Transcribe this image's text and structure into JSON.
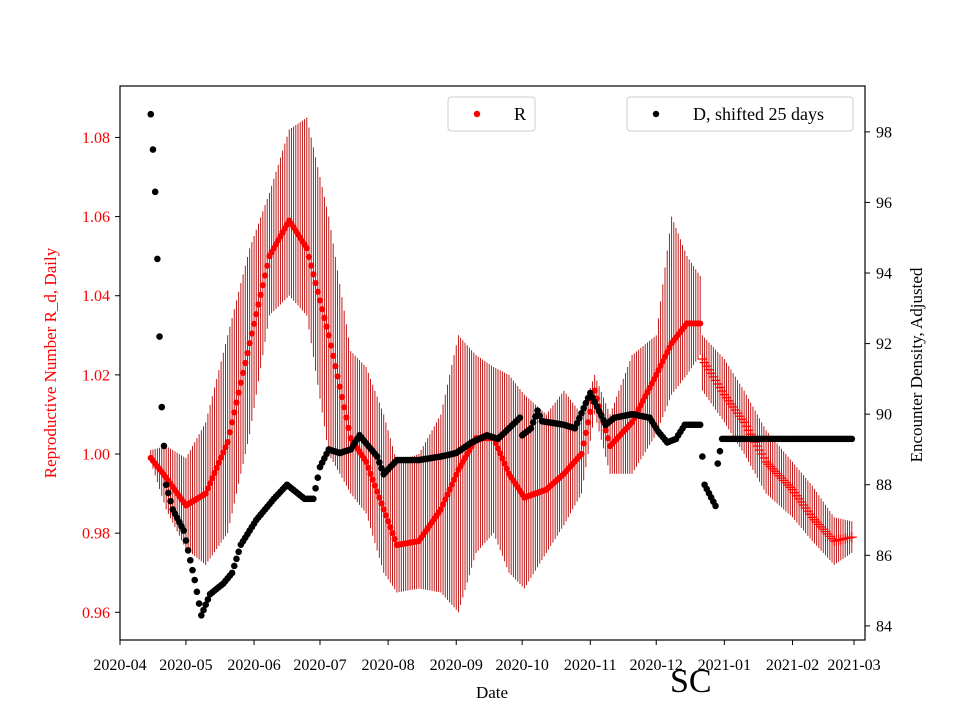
{
  "chart_data": {
    "type": "scatter",
    "state_label": "SC",
    "xlabel": "Date",
    "ylabel_left": "Reproductive Number R_d, Daily",
    "ylabel_right": "Encounter Density, Adjusted",
    "x_range": [
      "2020-04-01",
      "2021-03-06"
    ],
    "x_ticks": [
      "2020-04",
      "2020-05",
      "2020-06",
      "2020-07",
      "2020-08",
      "2020-09",
      "2020-10",
      "2020-11",
      "2020-12",
      "2021-01",
      "2021-02",
      "2021-03"
    ],
    "y_left_range": [
      0.953,
      1.093
    ],
    "y_left_ticks": [
      "0.96",
      "0.98",
      "1.00",
      "1.02",
      "1.04",
      "1.06",
      "1.08"
    ],
    "y_right_range": [
      83.6,
      99.3
    ],
    "y_right_ticks": [
      "84",
      "86",
      "88",
      "90",
      "92",
      "94",
      "96",
      "98"
    ],
    "legend": [
      "R",
      "D, shifted 25 days"
    ],
    "colors": {
      "R": "#ff0000",
      "R_errorbar": "#bb0000",
      "D": "#000000",
      "left_axis": "#ff0000"
    },
    "R_series": {
      "name": "R",
      "dot_start": "2020-04-15",
      "dot_end": "2020-12-21",
      "cross_start": "2020-12-22",
      "cross_end": "2021-02-28",
      "anchors": [
        [
          "2020-04-15",
          0.999,
          0.998,
          1.001
        ],
        [
          "2020-04-22",
          0.994,
          0.986,
          1.002
        ],
        [
          "2020-05-01",
          0.987,
          0.976,
          0.999
        ],
        [
          "2020-05-10",
          0.99,
          0.972,
          1.008
        ],
        [
          "2020-05-20",
          1.003,
          0.98,
          1.03
        ],
        [
          "2020-05-30",
          1.028,
          1.005,
          1.052
        ],
        [
          "2020-06-08",
          1.05,
          1.035,
          1.066
        ],
        [
          "2020-06-17",
          1.059,
          1.04,
          1.082
        ],
        [
          "2020-06-25",
          1.052,
          1.035,
          1.085
        ],
        [
          "2020-07-05",
          1.03,
          1.0,
          1.06
        ],
        [
          "2020-07-15",
          1.004,
          0.99,
          1.026
        ],
        [
          "2020-07-22",
          0.998,
          0.985,
          1.022
        ],
        [
          "2020-07-30",
          0.986,
          0.97,
          1.01
        ],
        [
          "2020-08-05",
          0.977,
          0.965,
          0.998
        ],
        [
          "2020-08-15",
          0.978,
          0.966,
          1.0
        ],
        [
          "2020-08-25",
          0.986,
          0.965,
          1.01
        ],
        [
          "2020-09-02",
          0.996,
          0.96,
          1.03
        ],
        [
          "2020-09-10",
          1.004,
          0.975,
          1.025
        ],
        [
          "2020-09-18",
          1.004,
          0.98,
          1.022
        ],
        [
          "2020-09-25",
          0.995,
          0.97,
          1.02
        ],
        [
          "2020-10-02",
          0.989,
          0.966,
          1.015
        ],
        [
          "2020-10-12",
          0.991,
          0.975,
          1.01
        ],
        [
          "2020-10-20",
          0.995,
          0.982,
          1.016
        ],
        [
          "2020-10-28",
          1.0,
          0.99,
          1.01
        ],
        [
          "2020-11-03",
          1.016,
          1.01,
          1.02
        ],
        [
          "2020-11-10",
          1.002,
          0.995,
          1.01
        ],
        [
          "2020-11-20",
          1.008,
          0.995,
          1.025
        ],
        [
          "2020-12-01",
          1.02,
          1.005,
          1.03
        ],
        [
          "2020-12-08",
          1.028,
          1.015,
          1.06
        ],
        [
          "2020-12-15",
          1.033,
          1.02,
          1.05
        ],
        [
          "2020-12-21",
          1.033,
          1.025,
          1.045
        ],
        [
          "2020-12-22",
          1.024,
          1.016,
          1.03
        ],
        [
          "2021-01-01",
          1.015,
          1.008,
          1.024
        ],
        [
          "2021-01-10",
          1.008,
          1.0,
          1.016
        ],
        [
          "2021-01-20",
          0.998,
          0.99,
          1.006
        ],
        [
          "2021-02-01",
          0.991,
          0.984,
          0.998
        ],
        [
          "2021-02-10",
          0.984,
          0.978,
          0.992
        ],
        [
          "2021-02-20",
          0.978,
          0.972,
          0.984
        ],
        [
          "2021-02-28",
          0.979,
          0.975,
          0.983
        ]
      ]
    },
    "D_series": {
      "name": "D, shifted 25 days",
      "points": [
        [
          "2020-04-15",
          98.5
        ],
        [
          "2020-04-16",
          97.5
        ],
        [
          "2020-04-17",
          96.3
        ],
        [
          "2020-04-18",
          94.4
        ],
        [
          "2020-04-19",
          92.2
        ],
        [
          "2020-04-20",
          90.2
        ],
        [
          "2020-04-22",
          88.0
        ],
        [
          "2020-04-25",
          87.3
        ],
        [
          "2020-04-30",
          86.7
        ],
        [
          "2020-05-05",
          85.3
        ],
        [
          "2020-05-08",
          84.3
        ],
        [
          "2020-05-12",
          84.9
        ],
        [
          "2020-05-18",
          85.2
        ],
        [
          "2020-05-22",
          85.5
        ],
        [
          "2020-05-26",
          86.3
        ],
        [
          "2020-06-02",
          87.0
        ],
        [
          "2020-06-10",
          87.6
        ],
        [
          "2020-06-16",
          88.0
        ],
        [
          "2020-06-20",
          87.8
        ],
        [
          "2020-06-24",
          87.6
        ],
        [
          "2020-06-28",
          87.6
        ],
        [
          "2020-07-01",
          88.5
        ],
        [
          "2020-07-05",
          89.0
        ],
        [
          "2020-07-10",
          88.9
        ],
        [
          "2020-07-15",
          89.0
        ],
        [
          "2020-07-19",
          89.4
        ],
        [
          "2020-07-23",
          89.1
        ],
        [
          "2020-07-27",
          88.8
        ],
        [
          "2020-07-30",
          88.3
        ],
        [
          "2020-08-05",
          88.7
        ],
        [
          "2020-08-15",
          88.7
        ],
        [
          "2020-08-25",
          88.8
        ],
        [
          "2020-09-01",
          88.9
        ],
        [
          "2020-09-08",
          89.2
        ],
        [
          "2020-09-15",
          89.4
        ],
        [
          "2020-09-20",
          89.3
        ],
        [
          "2020-09-25",
          89.6
        ],
        [
          "2020-09-30",
          89.9
        ],
        [
          "2020-10-01",
          89.4
        ],
        [
          "2020-10-05",
          89.6
        ],
        [
          "2020-10-08",
          90.1
        ],
        [
          "2020-10-10",
          89.8
        ],
        [
          "2020-10-20",
          89.7
        ],
        [
          "2020-10-25",
          89.6
        ],
        [
          "2020-11-01",
          90.6
        ],
        [
          "2020-11-08",
          89.7
        ],
        [
          "2020-11-12",
          89.9
        ],
        [
          "2020-11-20",
          90.0
        ],
        [
          "2020-11-28",
          89.9
        ],
        [
          "2020-12-02",
          89.5
        ],
        [
          "2020-12-06",
          89.2
        ],
        [
          "2020-12-10",
          89.3
        ],
        [
          "2020-12-14",
          89.7
        ],
        [
          "2020-12-21",
          89.7
        ],
        [
          "2020-12-22",
          88.8
        ],
        [
          "2020-12-23",
          88.0
        ],
        [
          "2020-12-28",
          87.4
        ],
        [
          "2020-12-29",
          88.6
        ],
        [
          "2020-12-31",
          89.3
        ],
        [
          "2021-02-28",
          89.3
        ]
      ]
    }
  }
}
